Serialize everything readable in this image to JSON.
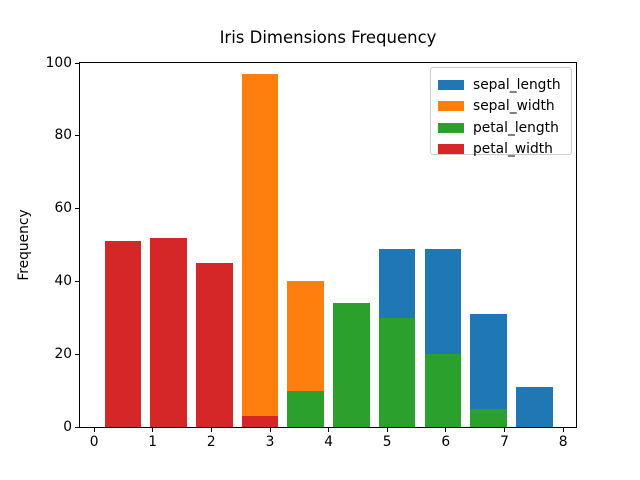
{
  "figure": {
    "background": "#ffffff"
  },
  "chart_data": {
    "type": "bar",
    "subtype": "overlapping-histogram",
    "title": "Iris Dimensions Frequency",
    "xlabel": "",
    "ylabel": "Frequency",
    "xlim": [
      -0.24,
      8.22
    ],
    "ylim": [
      0,
      100
    ],
    "xticks": [
      0,
      1,
      2,
      3,
      4,
      5,
      6,
      7,
      8
    ],
    "yticks": [
      0,
      20,
      40,
      60,
      80,
      100
    ],
    "grid": false,
    "legend_position": "upper right",
    "bin_centers": [
      0.49,
      1.27,
      2.05,
      2.83,
      3.61,
      4.39,
      5.17,
      5.95,
      6.73,
      7.51
    ],
    "bin_width": 0.78,
    "bar_width": 0.624,
    "series": [
      {
        "name": "sepal_length",
        "color": "#1f77b4",
        "values": [
          0,
          0,
          0,
          0,
          0,
          0,
          49,
          49,
          31,
          11
        ]
      },
      {
        "name": "sepal_width",
        "color": "#ff7f0e",
        "values": [
          0,
          0,
          0,
          97,
          40,
          0,
          0,
          0,
          0,
          0
        ]
      },
      {
        "name": "petal_length",
        "color": "#2ca02c",
        "values": [
          0,
          0,
          0,
          0,
          10,
          34,
          30,
          20,
          5,
          0
        ]
      },
      {
        "name": "petal_width",
        "color": "#d62728",
        "values": [
          51,
          52,
          45,
          3,
          0,
          0,
          0,
          0,
          0,
          0
        ]
      }
    ]
  }
}
